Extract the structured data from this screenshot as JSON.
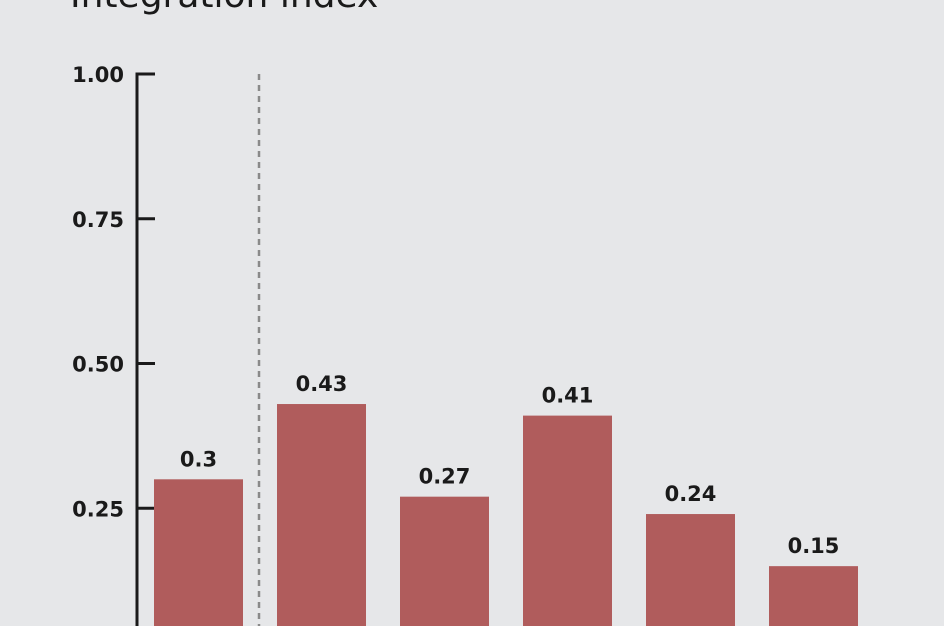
{
  "chart_data": {
    "type": "bar",
    "title": "Integration index",
    "values": [
      0.3,
      0.43,
      0.27,
      0.41,
      0.24,
      0.15
    ],
    "value_labels": [
      "0.3",
      "0.43",
      "0.27",
      "0.41",
      "0.24",
      "0.15"
    ],
    "y_ticks": [
      0.25,
      0.5,
      0.75,
      1.0
    ],
    "y_tick_labels": [
      "0.25",
      "0.50",
      "0.75",
      "1.00"
    ],
    "ylim": [
      0,
      1.0
    ],
    "reference_line": "dashed vertical separator after first bar",
    "grid": false,
    "legend": "none"
  },
  "colors": {
    "background": "#e6e7e9",
    "bar": "#b05c5c",
    "axis": "#1a1a1a",
    "separator": "#8a8a8a"
  }
}
